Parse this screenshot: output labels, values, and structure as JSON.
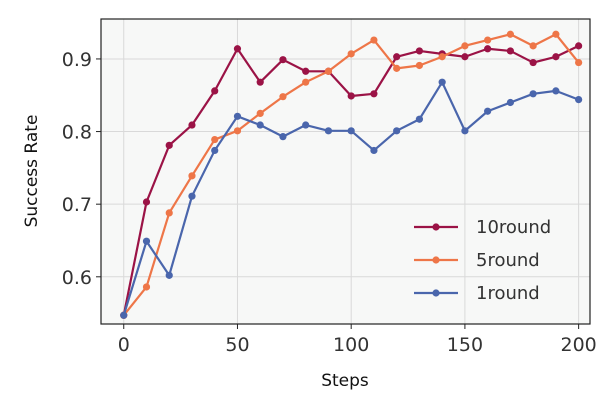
{
  "chart_data": {
    "type": "line",
    "title": "",
    "xlabel": "Steps",
    "ylabel": "Success Rate",
    "xlim": [
      -10,
      205
    ],
    "ylim": [
      0.535,
      0.955
    ],
    "xticks": [
      0,
      50,
      100,
      150,
      200
    ],
    "yticks": [
      0.6,
      0.7,
      0.8,
      0.9
    ],
    "xtick_labels": [
      "0",
      "50",
      "100",
      "150",
      "200"
    ],
    "ytick_labels": [
      "0.6",
      "0.7",
      "0.8",
      "0.9"
    ],
    "grid": true,
    "legend_position": "lower-right",
    "x": [
      0,
      10,
      20,
      30,
      40,
      50,
      60,
      70,
      80,
      90,
      100,
      110,
      120,
      130,
      140,
      150,
      160,
      170,
      180,
      190,
      200
    ],
    "series": [
      {
        "name": "10round",
        "color": "#9b1346",
        "values": [
          0.547,
          0.703,
          0.781,
          0.809,
          0.856,
          0.914,
          0.868,
          0.899,
          0.883,
          0.883,
          0.849,
          0.852,
          0.903,
          0.911,
          0.907,
          0.903,
          0.914,
          0.911,
          0.895,
          0.903,
          0.918
        ]
      },
      {
        "name": "5round",
        "color": "#ee7648",
        "values": [
          0.547,
          0.586,
          0.688,
          0.739,
          0.789,
          0.801,
          0.825,
          0.848,
          0.868,
          0.883,
          0.907,
          0.926,
          0.887,
          0.891,
          0.903,
          0.918,
          0.926,
          0.934,
          0.918,
          0.934,
          0.895
        ]
      },
      {
        "name": "1round",
        "color": "#4a66ac",
        "values": [
          0.547,
          0.649,
          0.602,
          0.711,
          0.774,
          0.821,
          0.809,
          0.793,
          0.809,
          0.801,
          0.801,
          0.774,
          0.801,
          0.817,
          0.868,
          0.801,
          0.828,
          0.84,
          0.852,
          0.856,
          0.844
        ]
      }
    ]
  }
}
